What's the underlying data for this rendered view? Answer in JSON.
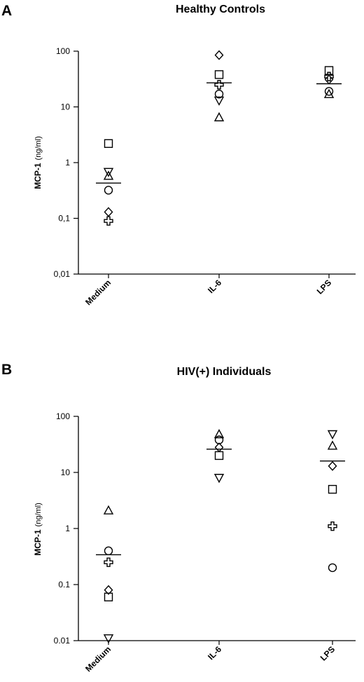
{
  "chart_data": [
    {
      "type": "scatter",
      "panel": "A",
      "title": "Healthy Controls",
      "ylabel": "MCP-1",
      "yunit": "(ng/ml)",
      "yscale": "log",
      "ylim": [
        0.01,
        100
      ],
      "yticks": [
        {
          "value": 100,
          "label": "100"
        },
        {
          "value": 10,
          "label": "10"
        },
        {
          "value": 1,
          "label": "1"
        },
        {
          "value": 0.1,
          "label": "0,1"
        },
        {
          "value": 0.01,
          "label": "0,01"
        }
      ],
      "categories": [
        "Medium",
        "IL-6",
        "LPS"
      ],
      "points": [
        {
          "category": "Medium",
          "marker": "square",
          "value": 2.2
        },
        {
          "category": "Medium",
          "marker": "triangle-down",
          "value": 0.68
        },
        {
          "category": "Medium",
          "marker": "triangle-up",
          "value": 0.58
        },
        {
          "category": "Medium",
          "marker": "circle",
          "value": 0.32
        },
        {
          "category": "Medium",
          "marker": "diamond",
          "value": 0.13
        },
        {
          "category": "Medium",
          "marker": "cross",
          "value": 0.09
        },
        {
          "category": "IL-6",
          "marker": "diamond",
          "value": 85
        },
        {
          "category": "IL-6",
          "marker": "square",
          "value": 38
        },
        {
          "category": "IL-6",
          "marker": "cross",
          "value": 25
        },
        {
          "category": "IL-6",
          "marker": "circle",
          "value": 17
        },
        {
          "category": "IL-6",
          "marker": "triangle-down",
          "value": 13
        },
        {
          "category": "IL-6",
          "marker": "triangle-up",
          "value": 6.5
        },
        {
          "category": "LPS",
          "marker": "square",
          "value": 45
        },
        {
          "category": "LPS",
          "marker": "cross",
          "value": 35
        },
        {
          "category": "LPS",
          "marker": "diamond",
          "value": 31
        },
        {
          "category": "LPS",
          "marker": "circle",
          "value": 19
        },
        {
          "category": "LPS",
          "marker": "triangle-up",
          "value": 17
        }
      ],
      "means": [
        {
          "category": "Medium",
          "value": 0.43
        },
        {
          "category": "IL-6",
          "value": 27
        },
        {
          "category": "LPS",
          "value": 26
        }
      ]
    },
    {
      "type": "scatter",
      "panel": "B",
      "title": "HIV(+)  Individuals",
      "ylabel": "MCP-1",
      "yunit": "(ng/ml)",
      "yscale": "log",
      "ylim": [
        0.01,
        100
      ],
      "yticks": [
        {
          "value": 100,
          "label": "100"
        },
        {
          "value": 10,
          "label": "10"
        },
        {
          "value": 1,
          "label": "1"
        },
        {
          "value": 0.1,
          "label": "0.1"
        },
        {
          "value": 0.01,
          "label": "0.01"
        }
      ],
      "categories": [
        "Medium",
        "IL-6",
        "LPS"
      ],
      "points": [
        {
          "category": "Medium",
          "marker": "triangle-up",
          "value": 2.1
        },
        {
          "category": "Medium",
          "marker": "circle",
          "value": 0.4
        },
        {
          "category": "Medium",
          "marker": "cross",
          "value": 0.25
        },
        {
          "category": "Medium",
          "marker": "diamond",
          "value": 0.08
        },
        {
          "category": "Medium",
          "marker": "square",
          "value": 0.06
        },
        {
          "category": "Medium",
          "marker": "triangle-down",
          "value": 0.011
        },
        {
          "category": "IL-6",
          "marker": "triangle-up",
          "value": 48
        },
        {
          "category": "IL-6",
          "marker": "circle",
          "value": 38
        },
        {
          "category": "IL-6",
          "marker": "diamond",
          "value": 28
        },
        {
          "category": "IL-6",
          "marker": "square",
          "value": 20
        },
        {
          "category": "IL-6",
          "marker": "triangle-down",
          "value": 8
        },
        {
          "category": "LPS",
          "marker": "triangle-down",
          "value": 48
        },
        {
          "category": "LPS",
          "marker": "triangle-up",
          "value": 30
        },
        {
          "category": "LPS",
          "marker": "diamond",
          "value": 13
        },
        {
          "category": "LPS",
          "marker": "square",
          "value": 5
        },
        {
          "category": "LPS",
          "marker": "cross",
          "value": 1.1
        },
        {
          "category": "LPS",
          "marker": "circle",
          "value": 0.2
        }
      ],
      "means": [
        {
          "category": "Medium",
          "value": 0.34
        },
        {
          "category": "IL-6",
          "value": 26
        },
        {
          "category": "LPS",
          "value": 16
        }
      ]
    }
  ]
}
